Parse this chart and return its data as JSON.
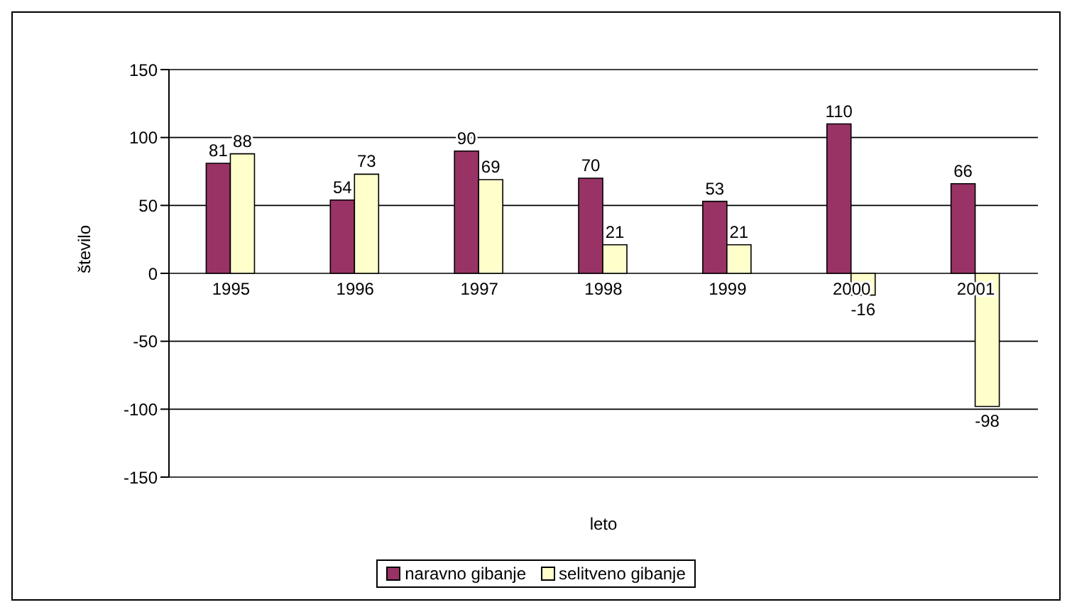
{
  "chart_data": {
    "type": "bar",
    "xlabel": "leto",
    "ylabel": "število",
    "categories": [
      "1995",
      "1996",
      "1997",
      "1998",
      "1999",
      "2000",
      "2001"
    ],
    "series": [
      {
        "name": "naravno gibanje",
        "color": "#993366",
        "values": [
          81,
          54,
          90,
          70,
          53,
          110,
          66
        ]
      },
      {
        "name": "selitveno gibanje",
        "color": "#ffffcc",
        "values": [
          88,
          73,
          69,
          21,
          21,
          -16,
          -98
        ]
      }
    ],
    "ylim": [
      -150,
      150
    ],
    "yticks": [
      -150,
      -100,
      -50,
      0,
      50,
      100,
      150
    ],
    "grid": "y",
    "legend": "bottom",
    "data_labels": true
  }
}
